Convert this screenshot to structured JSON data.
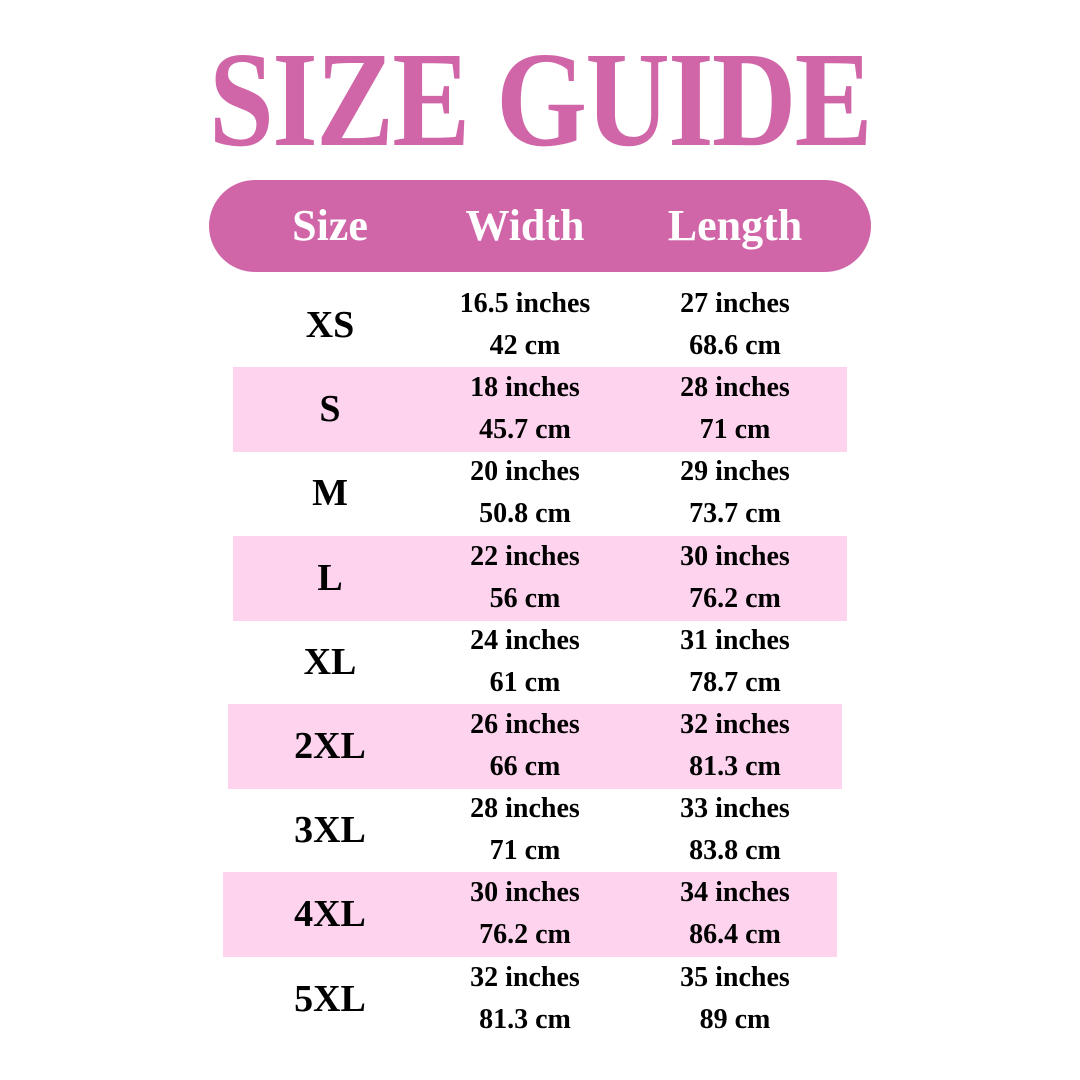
{
  "title": "SIZE GUIDE",
  "colors": {
    "accent": "#d066a8",
    "row_highlight": "#fdd3ee",
    "text": "#000000"
  },
  "header": {
    "size": "Size",
    "width": "Width",
    "length": "Length"
  },
  "rows": [
    {
      "size": "XS",
      "width_in": "16.5 inches",
      "width_cm": "42 cm",
      "length_in": "27 inches",
      "length_cm": "68.6 cm"
    },
    {
      "size": "S",
      "width_in": "18 inches",
      "width_cm": "45.7 cm",
      "length_in": "28 inches",
      "length_cm": "71 cm"
    },
    {
      "size": "M",
      "width_in": "20 inches",
      "width_cm": "50.8 cm",
      "length_in": "29 inches",
      "length_cm": "73.7 cm"
    },
    {
      "size": "L",
      "width_in": "22 inches",
      "width_cm": "56 cm",
      "length_in": "30 inches",
      "length_cm": "76.2 cm"
    },
    {
      "size": "XL",
      "width_in": "24 inches",
      "width_cm": "61 cm",
      "length_in": "31 inches",
      "length_cm": "78.7 cm"
    },
    {
      "size": "2XL",
      "width_in": "26 inches",
      "width_cm": "66 cm",
      "length_in": "32 inches",
      "length_cm": "81.3 cm"
    },
    {
      "size": "3XL",
      "width_in": "28 inches",
      "width_cm": "71 cm",
      "length_in": "33 inches",
      "length_cm": "83.8 cm"
    },
    {
      "size": "4XL",
      "width_in": "30 inches",
      "width_cm": "76.2 cm",
      "length_in": "34 inches",
      "length_cm": "86.4 cm"
    },
    {
      "size": "5XL",
      "width_in": "32 inches",
      "width_cm": "81.3 cm",
      "length_in": "35 inches",
      "length_cm": "89 cm"
    }
  ]
}
